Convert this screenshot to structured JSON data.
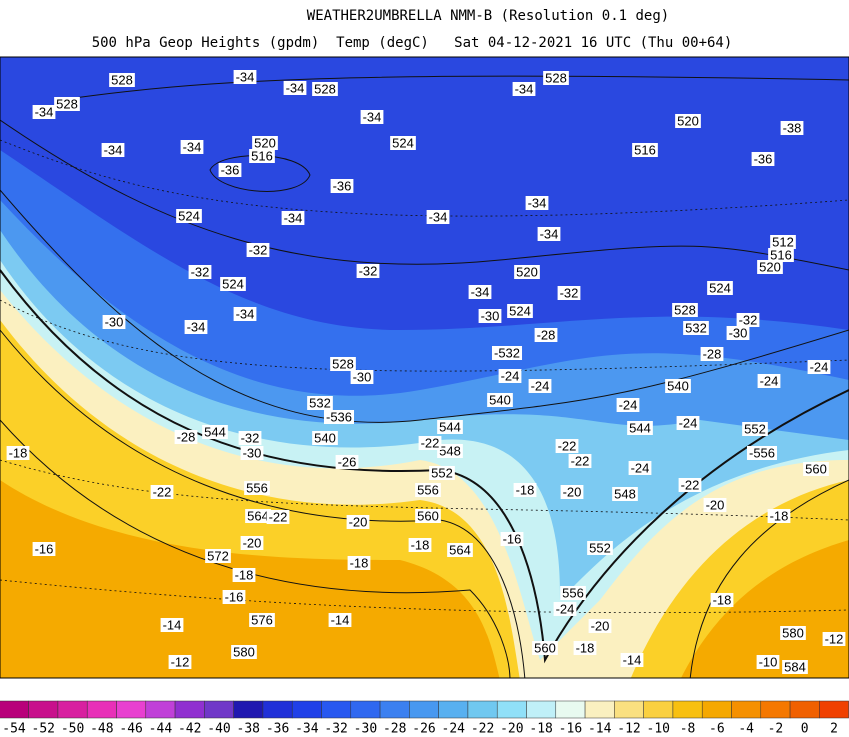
{
  "header": {
    "title": "WEATHER2UMBRELLA NMM-B (Resolution 0.1 deg)",
    "subtitle": "500 hPa Geop Heights (gpdm)  Temp (degC)   Sat 04-12-2021 16 UTC (Thu 00+64)"
  },
  "map": {
    "labels": [
      528,
      -34,
      -34,
      528,
      528,
      -34,
      528,
      -34,
      -34,
      524,
      520,
      -38,
      -34,
      -34,
      520,
      516,
      -36,
      -36,
      516,
      -36,
      524,
      -34,
      -34,
      -34,
      -34,
      512,
      516,
      520,
      520,
      -32,
      -32,
      524,
      -34,
      -32,
      524,
      528,
      -34,
      -32,
      524,
      -30,
      -32,
      532,
      -30,
      -34,
      -30,
      -28,
      -24,
      -532,
      -28,
      528,
      -30,
      -24,
      540,
      -24,
      -24,
      540,
      -24,
      544,
      -24,
      552,
      -556,
      560,
      544,
      548,
      -22,
      -22,
      -22,
      552,
      556,
      -24,
      548,
      -20,
      -18,
      -20,
      -22,
      -18,
      560,
      -20,
      564,
      552,
      -16,
      -18,
      -18,
      572,
      -20,
      -16,
      -18,
      -16,
      576,
      -14,
      -14,
      -12,
      580,
      556,
      -24,
      -20,
      560,
      -18,
      -14,
      580,
      -10,
      584,
      -18,
      -22,
      556,
      564,
      -22,
      -28,
      544,
      -32,
      -30,
      540,
      -536,
      532,
      -26,
      -18,
      -12
    ]
  },
  "colorbar": {
    "ticks": [
      -54,
      -52,
      -50,
      -48,
      -46,
      -44,
      -42,
      -40,
      -38,
      -36,
      -34,
      -32,
      -30,
      -28,
      -26,
      -24,
      -22,
      -20,
      -18,
      -16,
      -14,
      -12,
      -10,
      -8,
      -6,
      -4,
      -2,
      0,
      2
    ],
    "colors": [
      "#b8007a",
      "#c8108c",
      "#d820a0",
      "#e830b8",
      "#e840d0",
      "#c040d8",
      "#9030d0",
      "#7038c8",
      "#2018b0",
      "#2030d8",
      "#2040e8",
      "#2858f0",
      "#3068f0",
      "#3c80f0",
      "#4898f0",
      "#58b0f0",
      "#70c8f0",
      "#90e0f8",
      "#c0f0f8",
      "#e8faf0",
      "#faf0c0",
      "#fae080",
      "#fad040",
      "#f8c010",
      "#f5a800",
      "#f59000",
      "#f57800",
      "#f06000",
      "#f04000"
    ]
  }
}
